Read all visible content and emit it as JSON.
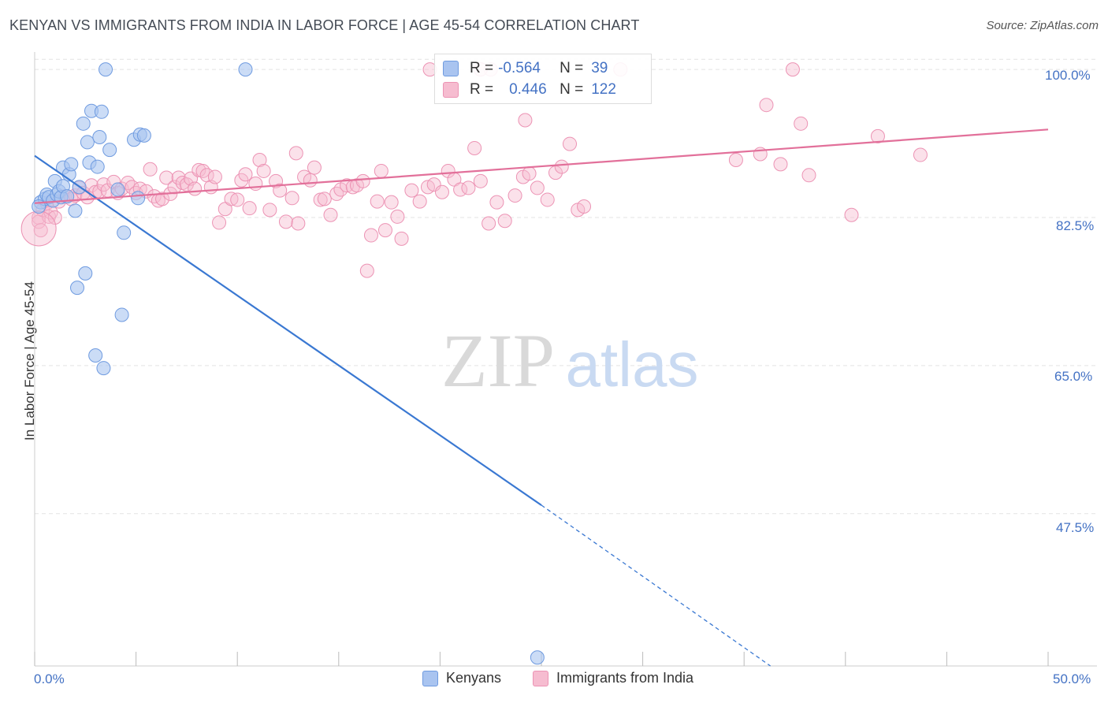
{
  "header": {
    "title": "KENYAN VS IMMIGRANTS FROM INDIA IN LABOR FORCE | AGE 45-54 CORRELATION CHART",
    "source": "Source: ZipAtlas.com"
  },
  "watermark": {
    "zip": "ZIP",
    "atlas": "atlas"
  },
  "stats": {
    "r_label": "R =",
    "n_label": "N =",
    "rows": [
      {
        "r": "-0.564",
        "n": "39"
      },
      {
        "r": "0.446",
        "n": "122"
      }
    ]
  },
  "colors": {
    "kenyans_fill": "#a9c4f0",
    "kenyans_stroke": "#6f9be0",
    "kenyans_line": "#3a78d2",
    "india_fill": "#f6bcd0",
    "india_stroke": "#ec93b4",
    "india_line": "#e2709a",
    "grid": "#e3e3e3",
    "tick_text": "#4472c4"
  },
  "chart_data": {
    "type": "scatter",
    "title": "KENYAN VS IMMIGRANTS FROM INDIA IN LABOR FORCE | AGE 45-54 CORRELATION CHART",
    "xlabel": "",
    "ylabel": "In Labor Force | Age 45-54",
    "xlim": [
      0,
      50
    ],
    "ylim": [
      29.5,
      101.5
    ],
    "x_tick_labels": [
      "0.0%",
      "50.0%"
    ],
    "y_ticks": [
      47.5,
      65.0,
      82.5,
      100.0
    ],
    "y_tick_labels": [
      "47.5%",
      "65.0%",
      "82.5%",
      "100.0%"
    ],
    "grid": true,
    "legend_position": "bottom-center",
    "series": [
      {
        "name": "Kenyans",
        "points": [
          [
            0.3,
            84.3
          ],
          [
            0.5,
            84.7
          ],
          [
            0.6,
            85.2
          ],
          [
            0.7,
            84.9
          ],
          [
            0.9,
            84.5
          ],
          [
            1.0,
            86.8
          ],
          [
            1.1,
            85.2
          ],
          [
            1.2,
            85.6
          ],
          [
            1.3,
            84.9
          ],
          [
            1.4,
            86.2
          ],
          [
            1.4,
            88.4
          ],
          [
            1.6,
            85.0
          ],
          [
            1.7,
            87.6
          ],
          [
            1.8,
            88.8
          ],
          [
            2.0,
            83.3
          ],
          [
            2.2,
            86.1
          ],
          [
            2.4,
            93.6
          ],
          [
            2.5,
            75.9
          ],
          [
            2.6,
            91.4
          ],
          [
            2.7,
            89.0
          ],
          [
            2.8,
            95.1
          ],
          [
            3.0,
            66.2
          ],
          [
            3.1,
            88.5
          ],
          [
            3.2,
            92.0
          ],
          [
            3.3,
            95.0
          ],
          [
            3.4,
            64.7
          ],
          [
            3.5,
            100.0
          ],
          [
            3.7,
            90.5
          ],
          [
            4.1,
            85.8
          ],
          [
            4.3,
            71.0
          ],
          [
            4.4,
            80.7
          ],
          [
            4.9,
            91.7
          ],
          [
            5.2,
            92.3
          ],
          [
            5.4,
            92.2
          ],
          [
            5.1,
            84.8
          ],
          [
            2.1,
            74.2
          ],
          [
            10.4,
            100.0
          ],
          [
            0.2,
            83.8
          ],
          [
            24.8,
            30.5
          ]
        ],
        "trend": {
          "x": [
            0,
            25
          ],
          "y": [
            89.8,
            48.5
          ],
          "dashed_extension": {
            "x": [
              25,
              36.3
            ],
            "y": [
              48.5,
              29.5
            ]
          }
        }
      },
      {
        "name": "Immigrants from India",
        "points": [
          [
            0.2,
            82.5
          ],
          [
            0.2,
            82.0
          ],
          [
            0.3,
            81.0
          ],
          [
            0.4,
            83.4
          ],
          [
            0.6,
            84.2
          ],
          [
            0.7,
            82.6
          ],
          [
            0.8,
            83.1
          ],
          [
            1.0,
            82.5
          ],
          [
            1.2,
            84.4
          ],
          [
            1.5,
            85.0
          ],
          [
            1.8,
            84.7
          ],
          [
            2.0,
            85.1
          ],
          [
            2.2,
            86.0
          ],
          [
            2.4,
            85.4
          ],
          [
            2.6,
            84.9
          ],
          [
            2.8,
            86.3
          ],
          [
            3.0,
            85.5
          ],
          [
            3.2,
            85.6
          ],
          [
            3.4,
            86.4
          ],
          [
            3.6,
            85.7
          ],
          [
            3.9,
            86.7
          ],
          [
            4.1,
            85.4
          ],
          [
            4.3,
            85.9
          ],
          [
            4.6,
            86.6
          ],
          [
            4.8,
            86.1
          ],
          [
            5.0,
            85.4
          ],
          [
            5.2,
            85.9
          ],
          [
            5.5,
            85.6
          ],
          [
            5.7,
            88.2
          ],
          [
            5.9,
            85.0
          ],
          [
            6.1,
            84.5
          ],
          [
            6.3,
            84.7
          ],
          [
            6.5,
            87.2
          ],
          [
            6.7,
            85.3
          ],
          [
            6.9,
            86.1
          ],
          [
            7.1,
            87.2
          ],
          [
            7.3,
            86.6
          ],
          [
            7.5,
            86.4
          ],
          [
            7.7,
            87.1
          ],
          [
            7.9,
            85.9
          ],
          [
            8.1,
            88.1
          ],
          [
            8.3,
            88.0
          ],
          [
            8.5,
            87.5
          ],
          [
            8.7,
            86.1
          ],
          [
            8.9,
            87.3
          ],
          [
            9.1,
            81.9
          ],
          [
            9.4,
            83.5
          ],
          [
            9.7,
            84.7
          ],
          [
            10.0,
            84.6
          ],
          [
            10.2,
            86.9
          ],
          [
            10.4,
            87.6
          ],
          [
            10.6,
            83.6
          ],
          [
            10.9,
            86.5
          ],
          [
            11.1,
            89.3
          ],
          [
            11.3,
            88.0
          ],
          [
            11.6,
            83.4
          ],
          [
            11.9,
            86.8
          ],
          [
            12.1,
            85.7
          ],
          [
            12.4,
            82.0
          ],
          [
            12.7,
            84.8
          ],
          [
            12.9,
            90.1
          ],
          [
            13.0,
            81.8
          ],
          [
            13.3,
            87.3
          ],
          [
            13.6,
            86.9
          ],
          [
            13.8,
            88.4
          ],
          [
            14.1,
            84.6
          ],
          [
            14.3,
            84.7
          ],
          [
            14.6,
            82.8
          ],
          [
            14.9,
            85.3
          ],
          [
            15.1,
            85.8
          ],
          [
            15.4,
            86.3
          ],
          [
            15.7,
            86.1
          ],
          [
            15.9,
            86.3
          ],
          [
            16.2,
            86.8
          ],
          [
            16.6,
            80.4
          ],
          [
            16.9,
            84.4
          ],
          [
            16.4,
            76.2
          ],
          [
            17.1,
            88.0
          ],
          [
            17.3,
            81.0
          ],
          [
            17.6,
            84.3
          ],
          [
            17.9,
            82.6
          ],
          [
            18.1,
            80.0
          ],
          [
            18.6,
            85.7
          ],
          [
            19.0,
            84.4
          ],
          [
            19.4,
            86.1
          ],
          [
            19.7,
            86.4
          ],
          [
            20.1,
            85.5
          ],
          [
            20.4,
            88.0
          ],
          [
            20.7,
            87.0
          ],
          [
            21.0,
            85.8
          ],
          [
            21.4,
            86.0
          ],
          [
            21.7,
            90.7
          ],
          [
            22.0,
            86.8
          ],
          [
            22.4,
            81.8
          ],
          [
            22.8,
            84.3
          ],
          [
            23.2,
            82.1
          ],
          [
            23.7,
            85.1
          ],
          [
            24.1,
            87.3
          ],
          [
            24.4,
            87.7
          ],
          [
            24.8,
            86.0
          ],
          [
            25.3,
            84.6
          ],
          [
            25.7,
            87.8
          ],
          [
            26.0,
            88.5
          ],
          [
            26.4,
            91.2
          ],
          [
            26.8,
            83.4
          ],
          [
            27.1,
            83.8
          ],
          [
            22.0,
            100.0
          ],
          [
            19.5,
            100.0
          ],
          [
            22.5,
            100.0
          ],
          [
            22.0,
            100.0
          ],
          [
            24.2,
            94.0
          ],
          [
            28.9,
            100.0
          ],
          [
            37.4,
            100.0
          ],
          [
            35.8,
            90.0
          ],
          [
            36.1,
            95.8
          ],
          [
            36.8,
            88.8
          ],
          [
            37.8,
            93.6
          ],
          [
            40.3,
            82.8
          ],
          [
            41.6,
            92.1
          ],
          [
            34.6,
            89.3
          ],
          [
            38.2,
            87.5
          ],
          [
            43.7,
            89.9
          ]
        ],
        "trend": {
          "x": [
            0,
            50
          ],
          "y": [
            84.2,
            92.9
          ]
        }
      }
    ]
  }
}
